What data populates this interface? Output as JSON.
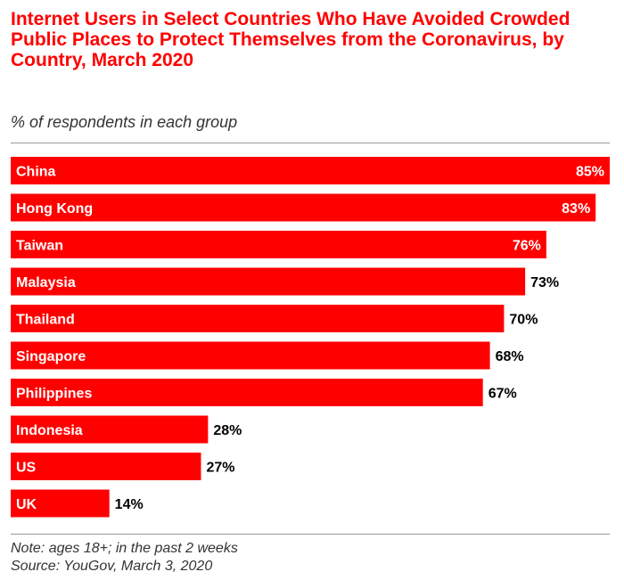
{
  "header": {
    "title": "Internet Users in Select Countries Who Have Avoided Crowded Public Places to Protect Themselves from the Coronavirus, by Country, March 2020",
    "subtitle": "% of respondents in each group"
  },
  "footer": {
    "note": "Note: ages 18+; in the past 2 weeks",
    "source": "Source: YouGov, March 3, 2020"
  },
  "chart_data": {
    "type": "bar",
    "orientation": "horizontal",
    "title": "Internet Users in Select Countries Who Have Avoided Crowded Public Places to Protect Themselves from the Coronavirus, by Country, March 2020",
    "subtitle": "% of respondents in each group",
    "categories": [
      "China",
      "Hong Kong",
      "Taiwan",
      "Malaysia",
      "Thailand",
      "Singapore",
      "Philippines",
      "Indonesia",
      "US",
      "UK"
    ],
    "values": [
      85,
      83,
      76,
      73,
      70,
      68,
      67,
      28,
      27,
      14
    ],
    "value_labels": [
      "85%",
      "83%",
      "76%",
      "73%",
      "70%",
      "68%",
      "67%",
      "28%",
      "27%",
      "14%"
    ],
    "xlim": [
      0,
      85
    ],
    "grid": false,
    "bar_color": "#ff0000"
  },
  "colors": {
    "accent": "#ff0000",
    "value_text_outside": "#000000",
    "value_text_inside": "#ffffff"
  }
}
